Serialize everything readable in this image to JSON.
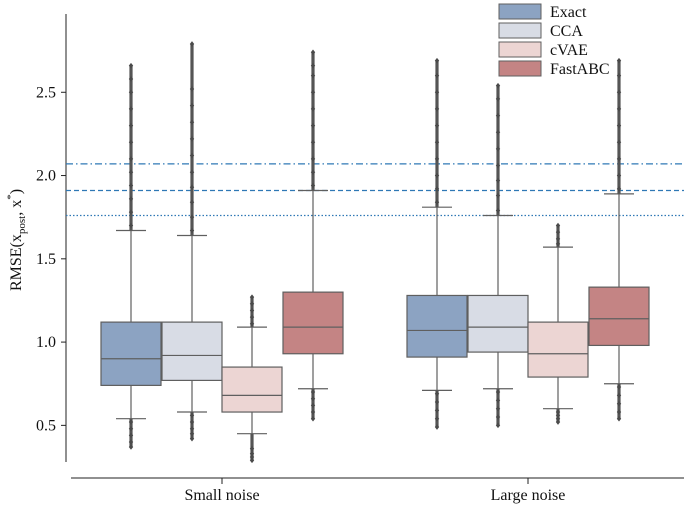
{
  "chart_data": {
    "type": "box",
    "ylabel": {
      "main": "RMSE(x",
      "sub": "post",
      "mid": ", x",
      "sup": "*",
      "end": ")"
    },
    "xlabel": "",
    "ylim": [
      0.28,
      2.97
    ],
    "yticks": [
      0.5,
      1.0,
      1.5,
      2.0,
      2.5
    ],
    "ytick_labels": [
      "0.5",
      "1.0",
      "1.5",
      "2.0",
      "2.5"
    ],
    "categories": [
      "Small noise",
      "Large noise"
    ],
    "series": [
      {
        "name": "Exact",
        "color": "#8ca3c2",
        "boxes": [
          {
            "min": 0.54,
            "q1": 0.74,
            "median": 0.9,
            "q3": 1.12,
            "max": 1.67,
            "low_outliers": [
              0.52,
              0.48,
              0.44,
              0.4,
              0.37
            ],
            "high_outliers": [
              1.7,
              1.78,
              1.86,
              1.94,
              2.02,
              2.1,
              2.2,
              2.3,
              2.4,
              2.5,
              2.58,
              2.66
            ]
          },
          {
            "min": 0.71,
            "q1": 0.91,
            "median": 1.07,
            "q3": 1.28,
            "max": 1.81,
            "low_outliers": [
              0.69,
              0.64,
              0.59,
              0.54,
              0.49
            ],
            "high_outliers": [
              1.84,
              1.92,
              2.0,
              2.1,
              2.2,
              2.3,
              2.4,
              2.5,
              2.6,
              2.69
            ]
          }
        ]
      },
      {
        "name": "CCA",
        "color": "#d8dce5",
        "boxes": [
          {
            "min": 0.58,
            "q1": 0.77,
            "median": 0.92,
            "q3": 1.12,
            "max": 1.64,
            "low_outliers": [
              0.56,
              0.52,
              0.48,
              0.45,
              0.42
            ],
            "high_outliers": [
              1.67,
              1.75,
              1.84,
              1.93,
              2.02,
              2.12,
              2.22,
              2.32,
              2.42,
              2.52,
              2.79
            ]
          },
          {
            "min": 0.72,
            "q1": 0.94,
            "median": 1.09,
            "q3": 1.28,
            "max": 1.76,
            "low_outliers": [
              0.7,
              0.65,
              0.6,
              0.55,
              0.5
            ],
            "high_outliers": [
              1.79,
              1.88,
              1.97,
              2.06,
              2.16,
              2.26,
              2.36,
              2.46,
              2.54
            ]
          }
        ]
      },
      {
        "name": "cVAE",
        "color": "#ecd5d3",
        "boxes": [
          {
            "min": 0.45,
            "q1": 0.58,
            "median": 0.68,
            "q3": 0.85,
            "max": 1.09,
            "low_outliers": [
              0.36,
              0.33,
              0.31,
              0.29
            ],
            "high_outliers": [
              1.11,
              1.15,
              1.19,
              1.23,
              1.27
            ]
          },
          {
            "min": 0.6,
            "q1": 0.79,
            "median": 0.93,
            "q3": 1.12,
            "max": 1.57,
            "low_outliers": [
              0.58,
              0.56,
              0.54,
              0.52
            ],
            "high_outliers": [
              1.59,
              1.62,
              1.66,
              1.7
            ]
          }
        ]
      },
      {
        "name": "FastABC",
        "color": "#c48484",
        "boxes": [
          {
            "min": 0.72,
            "q1": 0.93,
            "median": 1.09,
            "q3": 1.3,
            "max": 1.91,
            "low_outliers": [
              0.7,
              0.66,
              0.62,
              0.58,
              0.54
            ],
            "high_outliers": [
              1.94,
              2.02,
              2.1,
              2.2,
              2.3,
              2.4,
              2.5,
              2.6,
              2.66,
              2.74
            ]
          },
          {
            "min": 0.75,
            "q1": 0.98,
            "median": 1.14,
            "q3": 1.33,
            "max": 1.89,
            "low_outliers": [
              0.73,
              0.68,
              0.63,
              0.58,
              0.54
            ],
            "high_outliers": [
              1.92,
              2.0,
              2.1,
              2.2,
              2.3,
              2.4,
              2.5,
              2.6,
              2.69
            ]
          }
        ]
      }
    ],
    "reference_lines": [
      {
        "y": 2.07,
        "style": "dashdot",
        "color": "#2f78b5"
      },
      {
        "y": 1.91,
        "style": "dashed",
        "color": "#2f78b5"
      },
      {
        "y": 1.76,
        "style": "dotted",
        "color": "#2f78b5"
      }
    ],
    "legend_position": "top-right",
    "grid": false
  }
}
